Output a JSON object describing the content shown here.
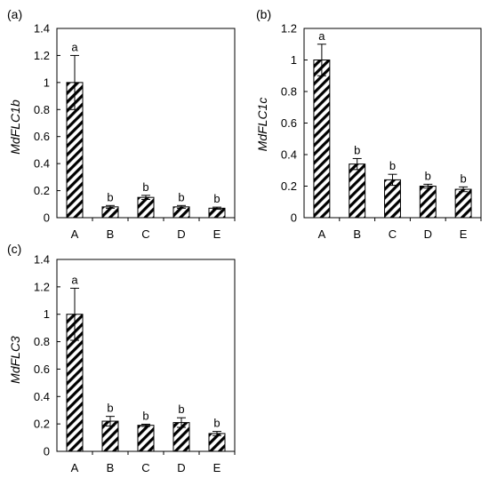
{
  "chart_data": [
    {
      "type": "bar",
      "panel_label": "(a)",
      "ylabel": "MdFLC1b",
      "categories": [
        "A",
        "B",
        "C",
        "D",
        "E"
      ],
      "values": [
        1.0,
        0.08,
        0.15,
        0.08,
        0.07
      ],
      "errors": [
        0.2,
        0.01,
        0.015,
        0.01,
        0.008
      ],
      "significance": [
        "a",
        "b",
        "b",
        "b",
        "b"
      ],
      "ylim": [
        0,
        1.4
      ],
      "yticks": [
        "0",
        "0.2",
        "0.4",
        "0.6",
        "0.8",
        "1",
        "1.2",
        "1.4"
      ],
      "bar_fill": "diagonal-hatch",
      "grid": false
    },
    {
      "type": "bar",
      "panel_label": "(b)",
      "ylabel": "MdFLC1c",
      "categories": [
        "A",
        "B",
        "C",
        "D",
        "E"
      ],
      "values": [
        1.0,
        0.34,
        0.24,
        0.2,
        0.18
      ],
      "errors": [
        0.1,
        0.035,
        0.035,
        0.012,
        0.015
      ],
      "significance": [
        "a",
        "b",
        "b",
        "b",
        "b"
      ],
      "ylim": [
        0,
        1.2
      ],
      "yticks": [
        "0",
        "0.2",
        "0.4",
        "0.6",
        "0.8",
        "1",
        "1.2"
      ],
      "bar_fill": "diagonal-hatch",
      "grid": false
    },
    {
      "type": "bar",
      "panel_label": "(c)",
      "ylabel": "MdFLC3",
      "categories": [
        "A",
        "B",
        "C",
        "D",
        "E"
      ],
      "values": [
        1.0,
        0.22,
        0.19,
        0.21,
        0.13
      ],
      "errors": [
        0.19,
        0.035,
        0.008,
        0.035,
        0.015
      ],
      "significance": [
        "a",
        "b",
        "b",
        "b",
        "b"
      ],
      "ylim": [
        0,
        1.4
      ],
      "yticks": [
        "0",
        "0.2",
        "0.4",
        "0.6",
        "0.8",
        "1",
        "1.2",
        "1.4"
      ],
      "bar_fill": "diagonal-hatch",
      "grid": false
    }
  ]
}
